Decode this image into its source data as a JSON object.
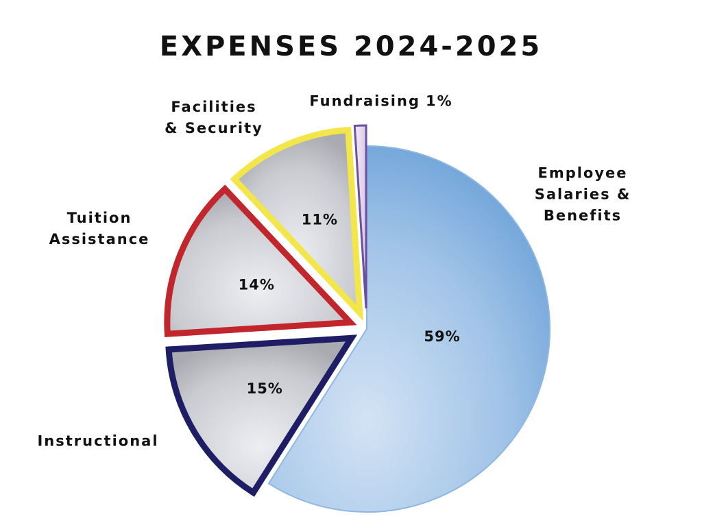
{
  "chart_data": {
    "type": "pie",
    "title": "EXPENSES 2024-2025",
    "categories": [
      "Employee\nSalaries & Benefits",
      "Instructional",
      "Tuition\nAssistance",
      "Facilities\n& Security",
      "Fundraising"
    ],
    "values": [
      59,
      15,
      14,
      11,
      1
    ],
    "value_labels": [
      "59%",
      "15%",
      "14%",
      "11%",
      "1%"
    ],
    "colors": [
      "#8fb7e2",
      "#1f1d66",
      "#c1262c",
      "#f3e64b",
      "#6b4fa0"
    ]
  }
}
